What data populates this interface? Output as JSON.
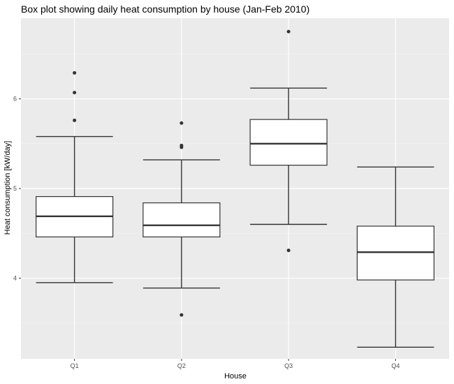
{
  "chart_data": {
    "type": "boxplot",
    "title": "Box plot showing daily heat consumption by house (Jan-Feb 2010)",
    "xlabel": "House",
    "ylabel": "Heat consumption [kW/day]",
    "ylim": [
      3.1,
      6.9
    ],
    "y_ticks": [
      4,
      5,
      6
    ],
    "y_tick_labels": [
      "4",
      "5",
      "6"
    ],
    "grid": true,
    "categories": [
      "Q1",
      "Q2",
      "Q3",
      "Q4"
    ],
    "boxes": [
      {
        "category": "Q1",
        "whisker_low": 3.95,
        "q1": 4.46,
        "median": 4.69,
        "q3": 4.91,
        "whisker_high": 5.58,
        "outliers": [
          5.76,
          6.07,
          6.29
        ]
      },
      {
        "category": "Q2",
        "whisker_low": 3.89,
        "q1": 4.46,
        "median": 4.59,
        "q3": 4.84,
        "whisker_high": 5.32,
        "outliers": [
          3.59,
          5.46,
          5.48,
          5.73
        ]
      },
      {
        "category": "Q3",
        "whisker_low": 4.6,
        "q1": 5.26,
        "median": 5.5,
        "q3": 5.77,
        "whisker_high": 6.12,
        "outliers": [
          4.31,
          6.75
        ]
      },
      {
        "category": "Q4",
        "whisker_low": 3.23,
        "q1": 3.98,
        "median": 4.29,
        "q3": 4.58,
        "whisker_high": 5.24,
        "outliers": []
      }
    ],
    "colors": {
      "panel_background": "#ebebeb",
      "grid_major": "#ffffff",
      "grid_minor": "#f5f5f5",
      "box_fill": "#ffffff",
      "box_stroke": "#333333",
      "outlier": "#333333"
    }
  }
}
